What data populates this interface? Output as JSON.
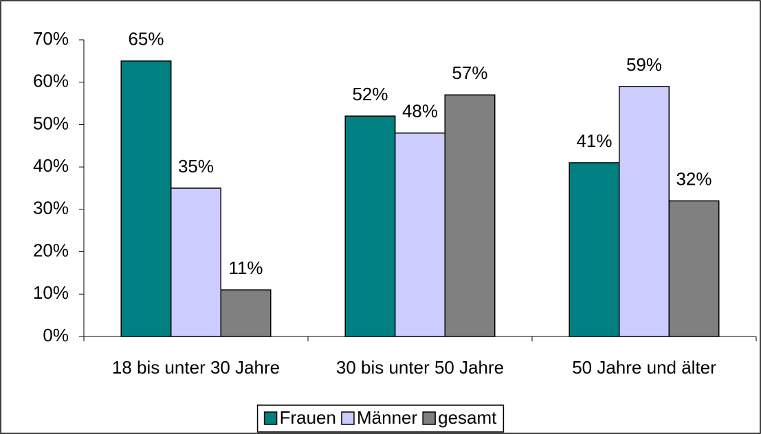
{
  "chart_data": {
    "type": "bar",
    "categories": [
      "18 bis unter 30 Jahre",
      "30 bis unter 50 Jahre",
      "50 Jahre und älter"
    ],
    "series": [
      {
        "name": "Frauen",
        "color": "#008080",
        "values": [
          65,
          52,
          41
        ],
        "value_labels": [
          "65%",
          "52%",
          "41%"
        ]
      },
      {
        "name": "Männer",
        "color": "#ccccff",
        "values": [
          35,
          48,
          59
        ],
        "value_labels": [
          "35%",
          "48%",
          "59%"
        ]
      },
      {
        "name": "gesamt",
        "color": "#808080",
        "values": [
          11,
          57,
          32
        ],
        "value_labels": [
          "11%",
          "57%",
          "32%"
        ]
      }
    ],
    "ylim": [
      0,
      70
    ],
    "yticks": [
      {
        "value": 0,
        "label": "0%"
      },
      {
        "value": 10,
        "label": "10%"
      },
      {
        "value": 20,
        "label": "20%"
      },
      {
        "value": 30,
        "label": "30%"
      },
      {
        "value": 40,
        "label": "40%"
      },
      {
        "value": 50,
        "label": "50%"
      },
      {
        "value": 60,
        "label": "60%"
      },
      {
        "value": 70,
        "label": "70%"
      }
    ],
    "grid": false,
    "legend": "bottom"
  }
}
